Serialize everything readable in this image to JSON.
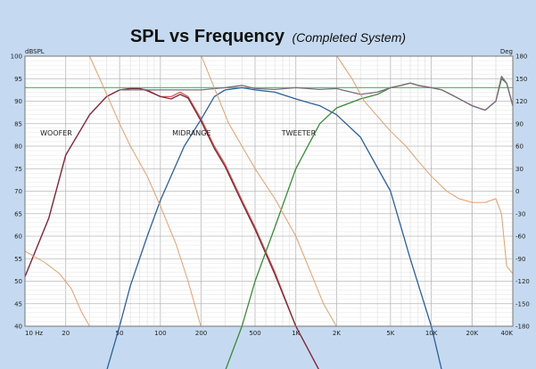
{
  "chart_data": {
    "type": "line",
    "title": "SPL vs Frequency",
    "subtitle": "(Completed System)",
    "left_axis_label": "dBSPL",
    "right_axis_label": "Deg",
    "x_scale": "log",
    "xlim": [
      10,
      40000
    ],
    "ylim": [
      40,
      100
    ],
    "y2lim": [
      -180,
      180
    ],
    "grid": true,
    "x_ticks": [
      {
        "value": 10,
        "label": "10 Hz"
      },
      {
        "value": 20,
        "label": "20"
      },
      {
        "value": 50,
        "label": "50"
      },
      {
        "value": 100,
        "label": "100"
      },
      {
        "value": 200,
        "label": "200"
      },
      {
        "value": 500,
        "label": "500"
      },
      {
        "value": 1000,
        "label": "1K"
      },
      {
        "value": 2000,
        "label": "2K"
      },
      {
        "value": 5000,
        "label": "5K"
      },
      {
        "value": 10000,
        "label": "10K"
      },
      {
        "value": 20000,
        "label": "20K"
      },
      {
        "value": 40000,
        "label": "40K"
      }
    ],
    "y_ticks": [
      100,
      95,
      90,
      85,
      80,
      75,
      70,
      65,
      60,
      55,
      50,
      45,
      40
    ],
    "y2_ticks": [
      180,
      150,
      120,
      90,
      60,
      30,
      0,
      -30,
      -60,
      -90,
      -120,
      -150,
      -180
    ],
    "annotations": [
      {
        "text": "WOOFER",
        "x": 17,
        "y": 83
      },
      {
        "text": "MIDRANGE",
        "x": 170,
        "y": 83
      },
      {
        "text": "TWEETER",
        "x": 1050,
        "y": 83
      }
    ],
    "reference_line": {
      "y": 93,
      "color": "#4cc27a"
    },
    "series": [
      {
        "color": "#d25a4a",
        "axis": "left",
        "x": [
          10,
          15,
          20,
          30,
          40,
          50,
          60,
          70,
          80,
          100,
          120,
          140,
          160,
          200,
          250,
          300,
          400,
          500,
          700,
          1000,
          1500
        ],
        "y": [
          51,
          64,
          78,
          87,
          91,
          92.5,
          92.8,
          92.8,
          92.5,
          91,
          91,
          92,
          91,
          86,
          80,
          76,
          68,
          62,
          52,
          40,
          30
        ]
      },
      {
        "color": "#7a2a40",
        "axis": "left",
        "x": [
          10,
          15,
          20,
          30,
          40,
          50,
          60,
          70,
          80,
          100,
          120,
          140,
          160,
          200,
          250,
          300,
          400,
          500,
          700,
          1000,
          1500
        ],
        "y": [
          51,
          64,
          78,
          87,
          91,
          92.5,
          92.8,
          92.8,
          92.3,
          91,
          90.5,
          91.5,
          90.7,
          85.5,
          79.5,
          75.5,
          67.5,
          61.5,
          51.5,
          40,
          30
        ]
      },
      {
        "color": "#2f5f9a",
        "axis": "left",
        "x": [
          40,
          50,
          60,
          80,
          100,
          150,
          200,
          250,
          300,
          400,
          500,
          700,
          1000,
          1300,
          1500,
          2000,
          3000,
          5000,
          7000,
          10000,
          12000
        ],
        "y": [
          30,
          40,
          49,
          60,
          68,
          80,
          86,
          91,
          92.5,
          93,
          92.5,
          92,
          90.5,
          89.5,
          89,
          87,
          82,
          70,
          55,
          40,
          30
        ]
      },
      {
        "color": "#3a8a3a",
        "axis": "left",
        "x": [
          300,
          400,
          500,
          700,
          1000,
          1500,
          2000,
          3000,
          4000,
          5000,
          6000,
          7000,
          8000,
          10000,
          12000,
          15000,
          20000,
          25000,
          30000,
          33000,
          36000,
          40000
        ],
        "y": [
          30,
          40,
          50,
          62,
          75,
          85,
          88.5,
          90.5,
          91.5,
          93,
          93.5,
          94,
          93.5,
          93,
          92.5,
          91,
          89,
          88,
          90,
          95,
          94,
          89
        ]
      },
      {
        "color": "#806a80",
        "axis": "left",
        "x": [
          50,
          100,
          130,
          200,
          300,
          400,
          500,
          700,
          1000,
          1500,
          2000,
          3000,
          4000,
          5000,
          6000,
          7000,
          8000,
          10000,
          12000,
          15000,
          20000,
          25000,
          30000,
          33000,
          36000,
          40000
        ],
        "y": [
          92.5,
          92.5,
          92.5,
          92.5,
          93,
          93.5,
          92.8,
          92.6,
          93,
          92.6,
          92.8,
          91.5,
          92,
          93,
          93.5,
          94,
          93.5,
          93,
          92.5,
          91,
          89,
          88,
          90,
          95.5,
          94,
          89
        ]
      },
      {
        "color": "#e0a070",
        "axis": "right",
        "x": [
          10,
          14,
          18,
          22,
          26,
          30
        ],
        "y": [
          -80,
          -95,
          -110,
          -130,
          -160,
          -180
        ]
      },
      {
        "color": "#e0a070",
        "axis": "right",
        "x": [
          30,
          40,
          50,
          60,
          80,
          100,
          130,
          160,
          199
        ],
        "y": [
          180,
          130,
          90,
          60,
          20,
          -20,
          -70,
          -120,
          -180
        ]
      },
      {
        "color": "#e0a070",
        "axis": "right",
        "x": [
          201,
          260,
          320,
          400,
          500,
          700,
          1000,
          1300,
          1600,
          1990
        ],
        "y": [
          180,
          130,
          90,
          60,
          30,
          -10,
          -60,
          -110,
          -150,
          -180
        ]
      },
      {
        "color": "#e0a070",
        "axis": "right",
        "x": [
          2010,
          2600,
          3200,
          4000,
          5000,
          6500,
          8000,
          10000,
          13000,
          16000,
          20000,
          25000,
          30000,
          33000,
          36000,
          40000
        ],
        "y": [
          180,
          150,
          120,
          100,
          80,
          60,
          40,
          20,
          0,
          -10,
          -15,
          -15,
          -10,
          -30,
          -100,
          -110
        ]
      }
    ]
  }
}
